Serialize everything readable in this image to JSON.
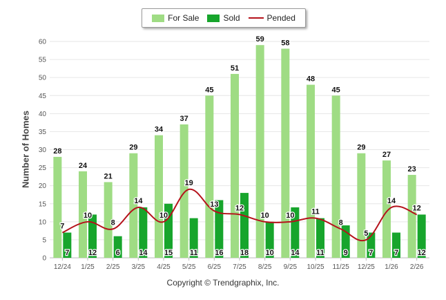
{
  "legend": {
    "for_sale_label": "For Sale",
    "sold_label": "Sold",
    "pended_label": "Pended"
  },
  "copyright": "Copyright © Trendgraphix, Inc.",
  "colors": {
    "for_sale": "#9fdc84",
    "sold": "#17a52c",
    "pended": "#b5121b",
    "grid": "#e6e6e6",
    "axis_text": "#555555"
  },
  "chart_data": {
    "type": "bar",
    "title": "",
    "xlabel": "",
    "ylabel": "Number of Homes",
    "ylim": [
      0,
      60
    ],
    "yticks": [
      0,
      5,
      10,
      15,
      20,
      25,
      30,
      35,
      40,
      45,
      50,
      55,
      60
    ],
    "grid": true,
    "legend_position": "top-center",
    "categories": [
      "12/24",
      "1/25",
      "2/25",
      "3/25",
      "4/25",
      "5/25",
      "6/25",
      "7/25",
      "8/25",
      "9/25",
      "10/25",
      "11/25",
      "12/25",
      "1/26",
      "2/26"
    ],
    "series": [
      {
        "name": "For Sale",
        "type": "bar",
        "values": [
          28,
          24,
          21,
          29,
          34,
          37,
          45,
          51,
          59,
          58,
          48,
          45,
          29,
          27,
          23
        ]
      },
      {
        "name": "Sold",
        "type": "bar",
        "values": [
          7,
          12,
          6,
          14,
          15,
          11,
          16,
          18,
          10,
          14,
          11,
          9,
          7,
          7,
          12
        ]
      },
      {
        "name": "Pended",
        "type": "line",
        "values": [
          7,
          10,
          8,
          14,
          10,
          19,
          13,
          12,
          10,
          10,
          11,
          8,
          5,
          14,
          12
        ]
      }
    ]
  }
}
